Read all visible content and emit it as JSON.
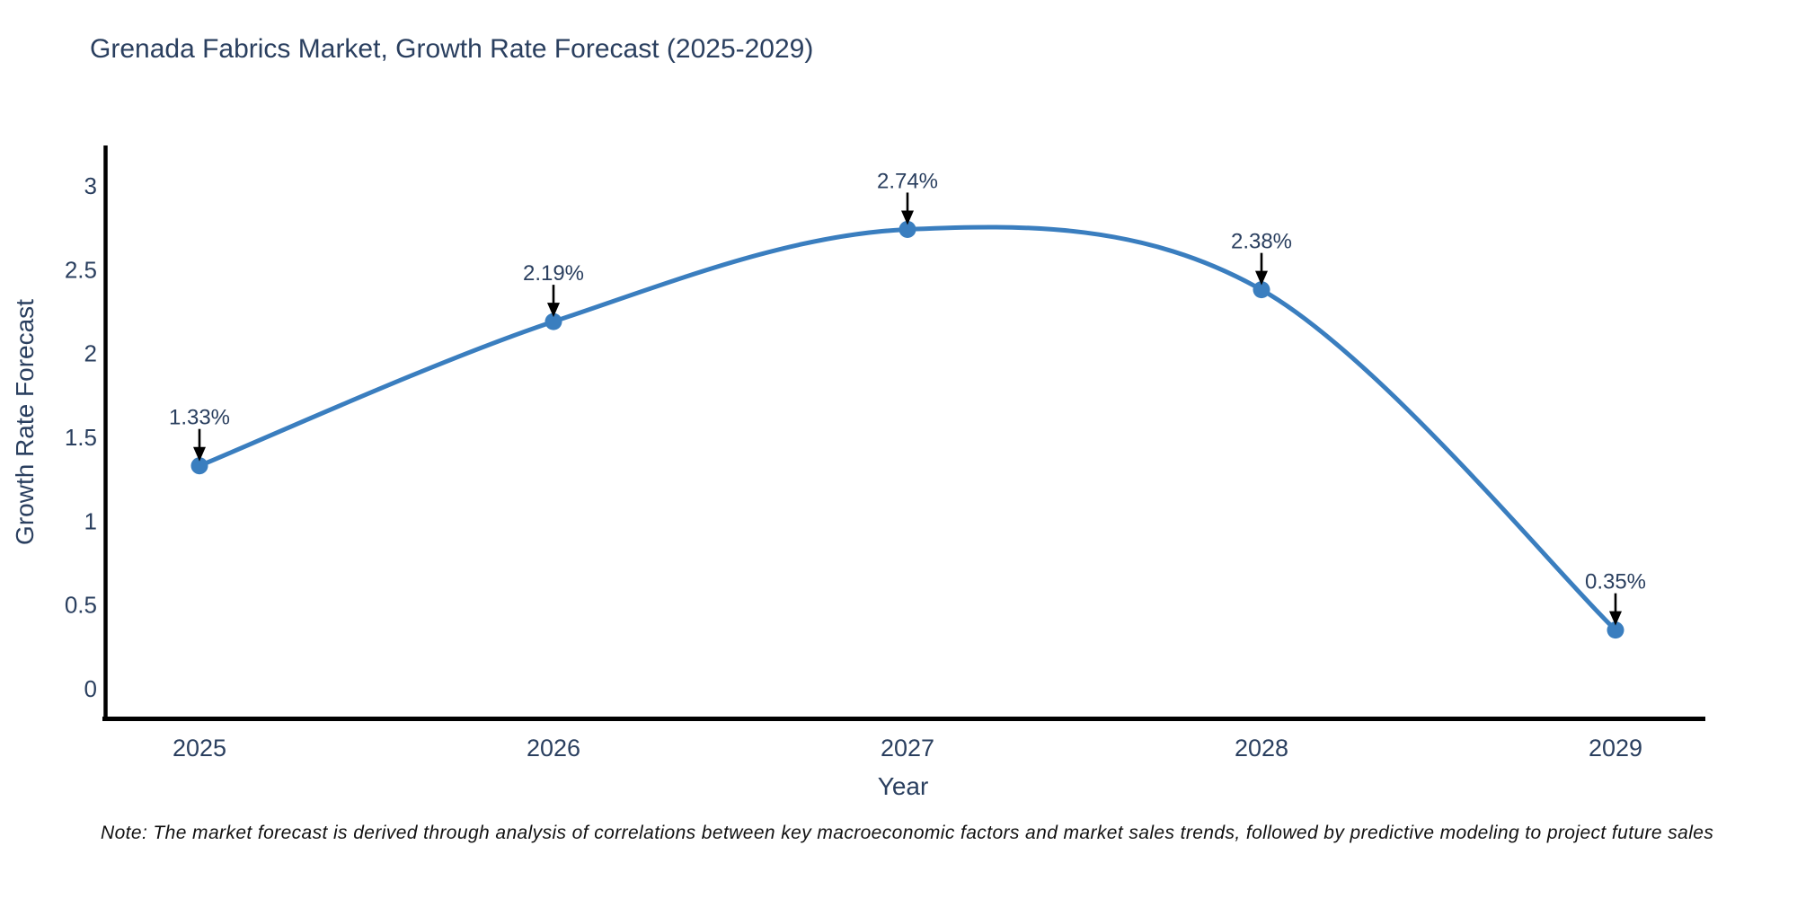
{
  "title": "Grenada Fabrics Market, Growth Rate Forecast (2025-2029)",
  "note": "Note: The market forecast is derived through analysis of correlations between key macroeconomic factors and market sales trends, followed by predictive modeling to project future sales",
  "chart_data": {
    "type": "line",
    "title": "Grenada Fabrics Market, Growth Rate Forecast (2025-2029)",
    "xlabel": "Year",
    "ylabel": "Growth Rate Forecast",
    "categories": [
      "2025",
      "2026",
      "2027",
      "2028",
      "2029"
    ],
    "series": [
      {
        "name": "Growth Rate Forecast",
        "values": [
          1.33,
          2.19,
          2.74,
          2.38,
          0.35
        ],
        "point_labels": [
          "1.33%",
          "2.19%",
          "2.74%",
          "2.38%",
          "0.35%"
        ]
      }
    ],
    "y_ticks": [
      "0",
      "0.5",
      "1",
      "1.5",
      "2",
      "2.5",
      "3"
    ],
    "y_tick_values": [
      0,
      0.5,
      1,
      1.5,
      2,
      2.5,
      3
    ],
    "ylim": [
      -0.2,
      3.25
    ],
    "line_shape": "spline",
    "grid": false,
    "legend": "none",
    "annotations": "value labels with down arrows above each point",
    "colors": {
      "line": "#3a7ebf",
      "marker": "#3a7ebf",
      "text": "#2a3f5f",
      "axis": "#000000",
      "arrow": "#000000",
      "note": "#111111",
      "background": "#ffffff"
    }
  }
}
